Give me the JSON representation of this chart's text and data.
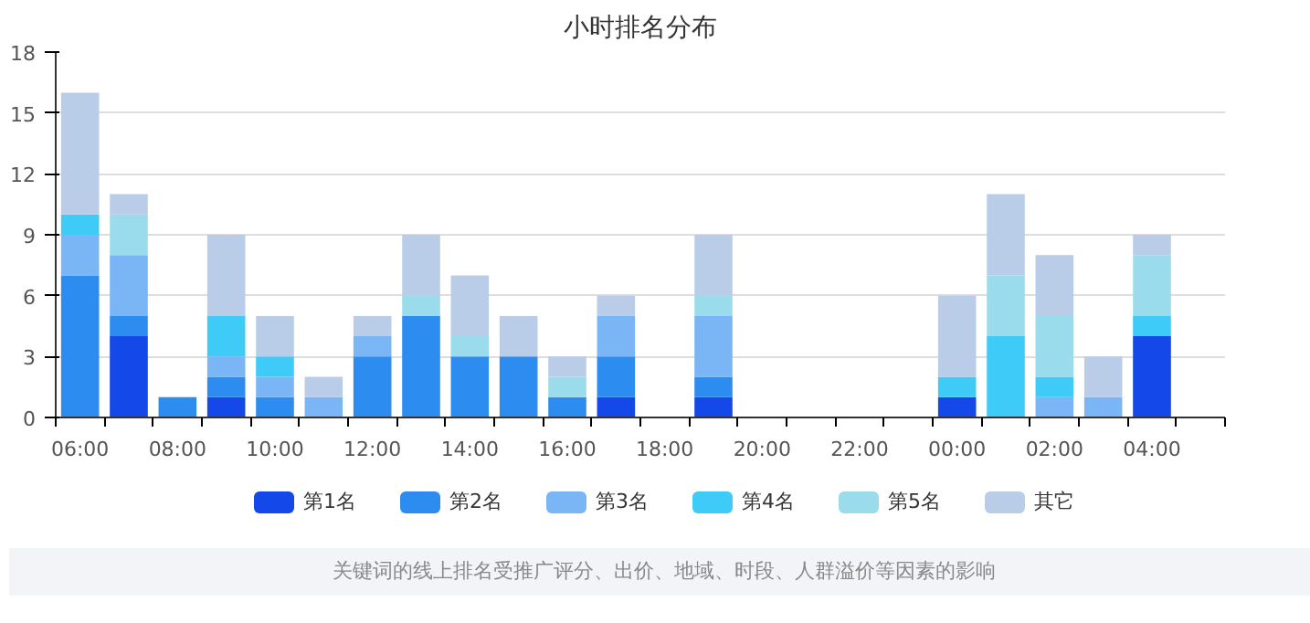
{
  "chart_data": {
    "type": "bar",
    "stacked": true,
    "title": "小时排名分布",
    "categories": [
      "06:00",
      null,
      "08:00",
      null,
      "10:00",
      null,
      "12:00",
      null,
      "14:00",
      null,
      "16:00",
      null,
      "18:00",
      null,
      "20:00",
      null,
      "22:00",
      null,
      "00:00",
      null,
      "02:00",
      null,
      "04:00",
      null
    ],
    "series": [
      {
        "name": "第1名",
        "color": "#1448e8",
        "values": [
          0,
          4,
          0,
          1,
          0,
          0,
          0,
          0,
          0,
          0,
          0,
          1,
          0,
          1,
          0,
          0,
          0,
          0,
          1,
          0,
          0,
          0,
          4,
          0
        ]
      },
      {
        "name": "第2名",
        "color": "#2d8cf0",
        "values": [
          7,
          1,
          1,
          1,
          1,
          0,
          3,
          5,
          3,
          3,
          1,
          2,
          0,
          1,
          0,
          0,
          0,
          0,
          0,
          0,
          0,
          0,
          0,
          0
        ]
      },
      {
        "name": "第3名",
        "color": "#7ab6f5",
        "values": [
          2,
          3,
          0,
          1,
          1,
          1,
          1,
          0,
          0,
          0,
          0,
          2,
          0,
          3,
          0,
          0,
          0,
          0,
          0,
          0,
          1,
          1,
          0,
          0
        ]
      },
      {
        "name": "第4名",
        "color": "#3ecbf7",
        "values": [
          1,
          0,
          0,
          2,
          1,
          0,
          0,
          0,
          0,
          0,
          0,
          0,
          0,
          0,
          0,
          0,
          0,
          0,
          1,
          4,
          1,
          0,
          1,
          0
        ]
      },
      {
        "name": "第5名",
        "color": "#9adcec",
        "values": [
          0,
          2,
          0,
          0,
          0,
          0,
          0,
          1,
          1,
          0,
          1,
          0,
          0,
          1,
          0,
          0,
          0,
          0,
          0,
          3,
          3,
          0,
          3,
          0
        ]
      },
      {
        "name": "其它",
        "color": "#b9cde9",
        "values": [
          6,
          1,
          0,
          4,
          2,
          1,
          1,
          3,
          3,
          2,
          1,
          1,
          0,
          3,
          0,
          0,
          0,
          0,
          4,
          4,
          3,
          2,
          1,
          0
        ]
      }
    ],
    "ylim": [
      0,
      18
    ],
    "yticks": [
      0,
      3,
      6,
      9,
      12,
      15,
      18
    ],
    "grid": "y",
    "legend": "bottom",
    "annotations": [
      "关键词的线上排名受推广评分、出价、地域、时段、人群溢价等因素的影响"
    ]
  }
}
